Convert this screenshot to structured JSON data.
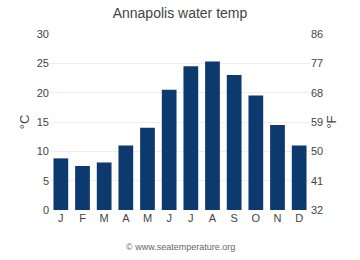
{
  "chart_data": {
    "type": "bar",
    "title": "Annapolis water temp",
    "categories": [
      "J",
      "F",
      "M",
      "A",
      "M",
      "J",
      "J",
      "A",
      "S",
      "O",
      "N",
      "D"
    ],
    "values": [
      8.8,
      7.5,
      8.1,
      11.0,
      14.0,
      20.5,
      24.5,
      25.3,
      23.0,
      19.5,
      14.5,
      11.0
    ],
    "color": "#0d3a6e",
    "ylabel": "°C",
    "y2label": "°F",
    "ylim": [
      0,
      30
    ],
    "yticks": [
      0,
      5,
      10,
      15,
      20,
      25,
      30
    ],
    "y2lim": [
      32,
      86
    ],
    "y2ticks": [
      32,
      41,
      50,
      59,
      68,
      77,
      86
    ],
    "grid": true,
    "annotations": [
      "© www.seatemperature.org"
    ]
  }
}
